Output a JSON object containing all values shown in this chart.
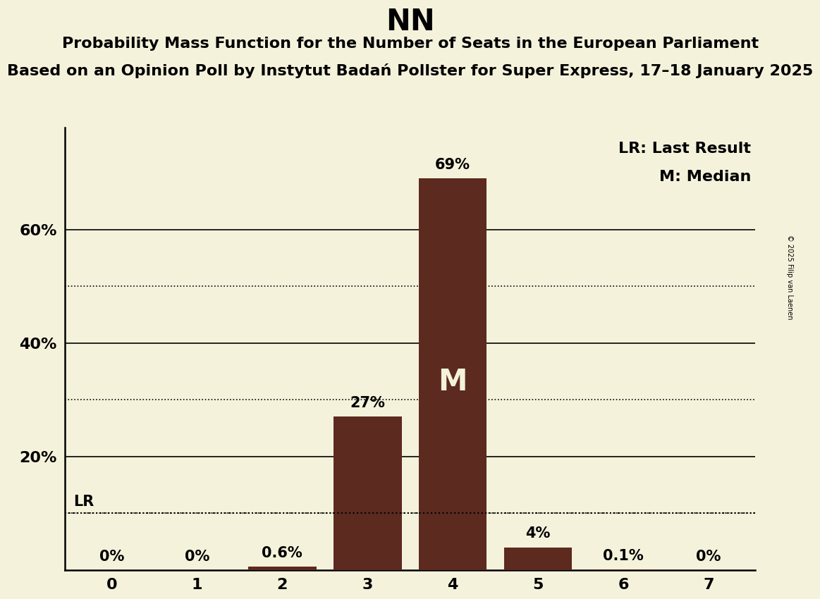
{
  "title": "NN",
  "subtitle1": "Probability Mass Function for the Number of Seats in the European Parliament",
  "subtitle2": "Based on an Opinion Poll by Instytut Badań Pollster for Super Express, 17–18 January 2025",
  "copyright": "© 2025 Filip van Laenen",
  "categories": [
    0,
    1,
    2,
    3,
    4,
    5,
    6,
    7
  ],
  "values": [
    0.0,
    0.0,
    0.6,
    27.0,
    69.0,
    4.0,
    0.1,
    0.0
  ],
  "bar_labels": [
    "0%",
    "0%",
    "0.6%",
    "27%",
    "69%",
    "4%",
    "0.1%",
    "0%"
  ],
  "bar_color": "#5c2a1e",
  "background_color": "#f5f2dc",
  "median_bar_index": 4,
  "lr_value": 10.0,
  "ylim": [
    0,
    78
  ],
  "solid_yticks": [
    20,
    40,
    60
  ],
  "dotted_yticks": [
    10,
    30,
    50
  ],
  "ytick_labels": {
    "20": "20%",
    "40": "40%",
    "60": "60%"
  },
  "legend_lr": "LR: Last Result",
  "legend_m": "M: Median",
  "title_fontsize": 30,
  "subtitle1_fontsize": 16,
  "subtitle2_fontsize": 16,
  "label_fontsize": 15,
  "tick_fontsize": 16,
  "legend_fontsize": 16,
  "median_label_fontsize": 30
}
